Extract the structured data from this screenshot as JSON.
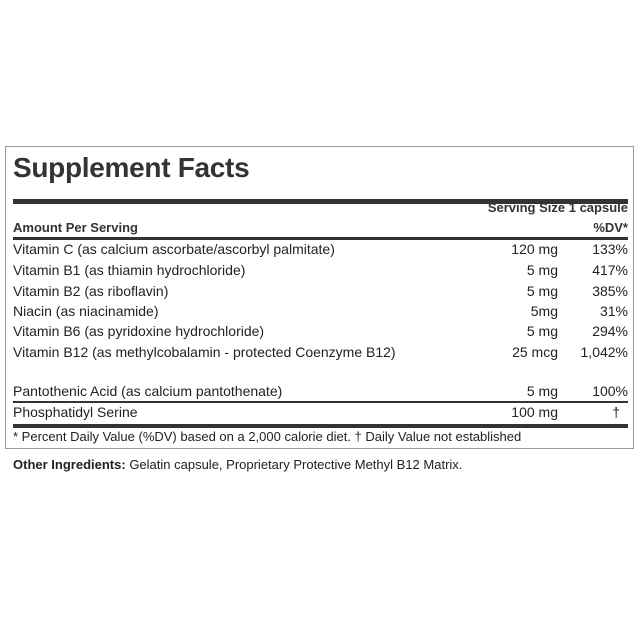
{
  "title": "Supplement Facts",
  "serving_size": "Serving Size 1 capsule",
  "amount_per_serving": "Amount Per Serving",
  "dv_header": "%DV*",
  "rows": [
    {
      "name": "Vitamin C (as calcium ascorbate/ascorbyl palmitate)",
      "amount": "120 mg",
      "dv": "133%"
    },
    {
      "name": "Vitamin B1 (as thiamin hydrochloride)",
      "amount": "5 mg",
      "dv": "417%"
    },
    {
      "name": "Vitamin B2 (as riboflavin)",
      "amount": "5 mg",
      "dv": "385%"
    },
    {
      "name": "Niacin (as niacinamide)",
      "amount": "5mg",
      "dv": "31%"
    },
    {
      "name": "Vitamin B6 (as pyridoxine hydrochloride)",
      "amount": "5 mg",
      "dv": "294%"
    },
    {
      "name": "Vitamin B12 (as methylcobalamin - protected Coenzyme B12)",
      "amount": "25 mcg",
      "dv": "1,042%"
    },
    {
      "name": "Pantothenic Acid (as calcium pantothenate)",
      "amount": "5 mg",
      "dv": "100%"
    },
    {
      "name": "Phosphatidyl Serine",
      "amount": "100 mg",
      "dv": "†"
    }
  ],
  "footnote": "* Percent Daily Value (%DV) based on a 2,000 calorie diet. † Daily Value not established",
  "other_ingredients": {
    "label": "Other Ingredients:",
    "text": "Gelatin capsule, Proprietary Protective Methyl B12 Matrix."
  }
}
